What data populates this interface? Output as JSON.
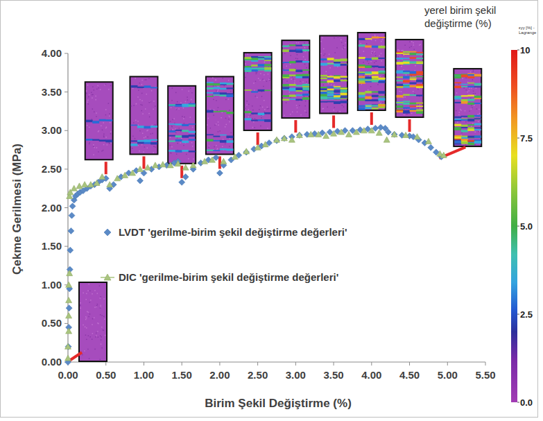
{
  "chart_data": {
    "type": "scatter",
    "x_label": "Birim Şekil Değiştirme (%)",
    "y_label": "Çekme Gerilmesi (MPa)",
    "xlim": [
      0,
      5.5
    ],
    "ylim": [
      0,
      4
    ],
    "xticks": [
      {
        "value": 0,
        "label": "0.00"
      },
      {
        "value": 0.5,
        "label": "0.50"
      },
      {
        "value": 1,
        "label": "1.00"
      },
      {
        "value": 1.5,
        "label": "1.50"
      },
      {
        "value": 2,
        "label": "2.00"
      },
      {
        "value": 2.5,
        "label": "2.50"
      },
      {
        "value": 3,
        "label": "3.00"
      },
      {
        "value": 3.5,
        "label": "3.50"
      },
      {
        "value": 4,
        "label": "4.00"
      },
      {
        "value": 4.5,
        "label": "4.50"
      },
      {
        "value": 5,
        "label": "5.00"
      },
      {
        "value": 5.5,
        "label": "5.50"
      }
    ],
    "yticks": [
      {
        "value": 0,
        "label": "0.00"
      },
      {
        "value": 0.5,
        "label": "0.50"
      },
      {
        "value": 1,
        "label": "1.00"
      },
      {
        "value": 1.5,
        "label": "1.50"
      },
      {
        "value": 2,
        "label": "2.00"
      },
      {
        "value": 2.5,
        "label": "2.50"
      },
      {
        "value": 3,
        "label": "3.00"
      },
      {
        "value": 3.5,
        "label": "3.50"
      },
      {
        "value": 4,
        "label": "4.00"
      }
    ],
    "grid": false,
    "legend": "left",
    "series": [
      {
        "name": "LVDT 'gerilme-birim şekil değiştirme değerleri'",
        "color": "#5b8ac6",
        "marker": "diamond",
        "x": [
          0,
          0.005,
          0.01,
          0.015,
          0.02,
          0.025,
          0.03,
          0.04,
          0.05,
          0.06,
          0.08,
          0.1,
          0.13,
          0.16,
          0.2,
          0.25,
          0.3,
          0.35,
          0.4,
          0.45,
          0.5,
          0.55,
          0.6,
          0.7,
          0.8,
          0.9,
          0.95,
          1.0,
          1.1,
          1.2,
          1.3,
          1.4,
          1.45,
          1.5,
          1.55,
          1.65,
          1.75,
          1.85,
          1.95,
          2.0,
          2.05,
          2.15,
          2.25,
          2.35,
          2.45,
          2.55,
          2.65,
          2.75,
          2.85,
          2.95,
          3.05,
          3.15,
          3.25,
          3.35,
          3.45,
          3.55,
          3.65,
          3.75,
          3.85,
          3.95,
          4.05,
          4.12,
          4.18,
          4.22,
          4.3,
          4.4,
          4.5,
          4.55,
          4.62,
          4.7,
          4.78,
          4.85,
          4.92
        ],
        "values": [
          0,
          0.2,
          0.45,
          0.7,
          0.95,
          1.2,
          1.45,
          1.7,
          1.9,
          2.02,
          2.1,
          2.15,
          2.18,
          2.2,
          2.22,
          2.25,
          2.28,
          2.3,
          2.33,
          2.36,
          2.38,
          2.25,
          2.3,
          2.4,
          2.45,
          2.48,
          2.35,
          2.45,
          2.5,
          2.53,
          2.55,
          2.58,
          2.6,
          2.33,
          2.4,
          2.5,
          2.58,
          2.62,
          2.65,
          2.45,
          2.55,
          2.62,
          2.68,
          2.72,
          2.76,
          2.8,
          2.84,
          2.87,
          2.9,
          2.92,
          2.94,
          2.95,
          2.96,
          2.97,
          2.98,
          2.99,
          3.0,
          3.0,
          3.01,
          3.02,
          3.03,
          3.04,
          3.03,
          2.98,
          2.95,
          2.94,
          2.93,
          2.92,
          2.88,
          2.84,
          2.78,
          2.72,
          2.66
        ]
      },
      {
        "name": "DIC 'gerilme-birim şekil değiştirme değerleri'",
        "color": "#a9c47f",
        "marker": "triangle",
        "x": [
          0.0,
          0.0,
          0.01,
          0.01,
          0.01,
          0.01,
          0.02,
          0.02,
          0.03,
          0.08,
          0.15,
          0.22,
          0.3,
          0.38,
          0.45,
          0.55,
          0.65,
          0.75,
          0.85,
          0.95,
          1.05,
          1.15,
          1.25,
          1.35,
          1.45,
          1.55,
          1.65,
          1.8,
          1.9,
          2.05,
          2.2,
          2.35,
          2.5,
          2.6,
          2.75,
          2.85,
          2.95,
          3.05,
          3.2,
          3.3,
          3.4,
          3.5,
          3.6,
          3.7,
          3.8,
          3.9,
          4.0,
          4.1,
          4.2,
          4.3,
          4.45,
          4.6,
          4.75,
          4.9,
          4.95
        ],
        "values": [
          0.05,
          0.2,
          0.4,
          0.6,
          0.8,
          1.0,
          1.15,
          2.15,
          2.2,
          2.25,
          2.28,
          2.3,
          2.3,
          2.32,
          2.4,
          2.3,
          2.38,
          2.42,
          2.45,
          2.5,
          2.52,
          2.55,
          2.56,
          2.55,
          2.57,
          2.52,
          2.55,
          2.6,
          2.62,
          2.6,
          2.66,
          2.73,
          2.78,
          2.82,
          2.88,
          2.9,
          2.88,
          2.94,
          2.95,
          2.95,
          2.93,
          2.96,
          2.98,
          2.95,
          2.98,
          3.0,
          3.0,
          2.97,
          2.88,
          2.95,
          2.94,
          2.92,
          2.86,
          2.7,
          2.68
        ]
      }
    ],
    "colorbar": {
      "title": "yerel birim şekil değiştirme (%)",
      "subtitle": "εyy [%] - Lagrange",
      "range": [
        0,
        10
      ],
      "ticks": [
        {
          "value": 0,
          "label": "0.0"
        },
        {
          "value": 2.5,
          "label": "2.5"
        },
        {
          "value": 5,
          "label": "5.0"
        },
        {
          "value": 7.5,
          "label": "7.5"
        },
        10
      ]
    }
  }
}
